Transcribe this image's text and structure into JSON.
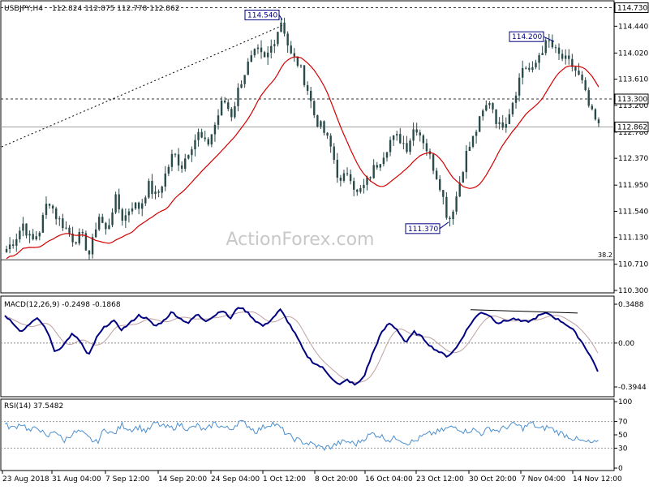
{
  "chart_data": [
    {
      "type": "candlestick",
      "title": "USDJPY,H4",
      "ohlc_header": "112.824 112.875 112.778 112.862",
      "watermark": "ActionForex.com",
      "ylim": [
        110.3,
        114.8
      ],
      "y_ticks": [
        "114.730",
        "114.440",
        "114.020",
        "113.610",
        "113.200",
        "112.780",
        "112.370",
        "111.950",
        "111.540",
        "111.130",
        "110.710",
        "110.300"
      ],
      "y_tick_values": [
        114.73,
        114.44,
        114.02,
        113.61,
        113.2,
        112.78,
        112.37,
        111.95,
        111.54,
        111.13,
        110.71,
        110.3
      ],
      "current_price_label": "112.862",
      "current_price": 112.862,
      "level_labels": [
        "114.730",
        "113.300"
      ],
      "levels": [
        114.73,
        113.3,
        110.78
      ],
      "fib_label": "38.2",
      "annotations": [
        {
          "label": "114.540",
          "value": 114.54
        },
        {
          "label": "114.200",
          "value": 114.2
        },
        {
          "label": "111.370",
          "value": 111.37
        }
      ],
      "close_path": [
        110.95,
        111.1,
        111.35,
        111.05,
        111.25,
        111.75,
        111.45,
        111.3,
        111.1,
        111.15,
        110.85,
        111.5,
        111.2,
        111.75,
        111.4,
        111.65,
        111.6,
        111.95,
        111.75,
        112.1,
        112.45,
        112.25,
        112.55,
        112.75,
        112.55,
        112.9,
        113.3,
        113.05,
        113.55,
        113.85,
        114.05,
        113.9,
        114.2,
        114.55,
        114.0,
        113.85,
        113.5,
        113.0,
        112.8,
        112.5,
        111.95,
        112.2,
        111.8,
        111.95,
        112.2,
        112.4,
        112.65,
        112.7,
        112.55,
        112.9,
        112.65,
        112.3,
        111.95,
        111.37,
        111.8,
        112.4,
        112.7,
        113.05,
        113.3,
        112.85,
        113.0,
        113.4,
        113.85,
        113.7,
        114.05,
        114.2,
        114.0,
        113.9,
        113.8,
        113.55,
        113.1,
        112.86
      ]
    },
    {
      "type": "line",
      "title": "MACD(12,26,9) -0.2498 -0.1868",
      "ylim": [
        -0.46,
        0.4
      ],
      "y_ticks": [
        "0.3488",
        "0.00",
        "-0.3944"
      ],
      "y_tick_values": [
        0.3488,
        0.0,
        -0.3944
      ],
      "macd_path": [
        0.25,
        0.18,
        0.1,
        0.18,
        0.22,
        0.12,
        -0.08,
        -0.02,
        0.08,
        0.02,
        -0.12,
        0.05,
        0.15,
        0.2,
        0.12,
        0.18,
        0.25,
        0.22,
        0.15,
        0.2,
        0.28,
        0.22,
        0.18,
        0.26,
        0.2,
        0.24,
        0.3,
        0.22,
        0.33,
        0.28,
        0.2,
        0.15,
        0.22,
        0.3,
        0.18,
        0.05,
        -0.1,
        -0.18,
        -0.22,
        -0.3,
        -0.38,
        -0.33,
        -0.38,
        -0.3,
        -0.1,
        0.08,
        0.18,
        0.12,
        0.0,
        0.1,
        0.05,
        -0.03,
        -0.08,
        -0.12,
        -0.05,
        0.08,
        0.2,
        0.28,
        0.25,
        0.18,
        0.2,
        0.22,
        0.19,
        0.2,
        0.25,
        0.27,
        0.22,
        0.18,
        0.12,
        0.02,
        -0.1,
        -0.25
      ]
    },
    {
      "type": "line",
      "title": "RSI(14) 37.5482",
      "ylim": [
        0,
        100
      ],
      "y_ticks": [
        "100",
        "70",
        "50",
        "30",
        "0"
      ],
      "y_tick_values": [
        100,
        70,
        50,
        30,
        0
      ],
      "rsi_path": [
        65,
        60,
        68,
        55,
        62,
        45,
        58,
        40,
        52,
        55,
        45,
        38,
        60,
        50,
        65,
        58,
        62,
        55,
        68,
        62,
        60,
        66,
        58,
        64,
        55,
        68,
        62,
        58,
        70,
        65,
        55,
        62,
        68,
        60,
        48,
        42,
        38,
        35,
        30,
        32,
        38,
        40,
        36,
        45,
        52,
        48,
        42,
        46,
        38,
        40,
        48,
        52,
        55,
        60,
        62,
        55,
        58,
        52,
        60,
        56,
        62,
        66,
        60,
        68,
        58,
        62,
        55,
        50,
        45,
        40,
        38,
        37.5
      ]
    }
  ],
  "x_axis": {
    "labels": [
      "23 Aug 2018",
      "31 Aug 04:00",
      "7 Sep 12:00",
      "14 Sep 20:00",
      "24 Sep 04:00",
      "1 Oct 12:00",
      "8 Oct 20:00",
      "16 Oct 04:00",
      "23 Oct 12:00",
      "30 Oct 20:00",
      "7 Nov 04:00",
      "14 Nov 12:00"
    ]
  },
  "colors": {
    "candle": "#2b4a4a",
    "ma": "#d40000",
    "macd": "#000080",
    "macd_signal": "#c0a0a0",
    "rsi": "#4a8fd0",
    "levels": "#333333",
    "label_border": "#000080"
  }
}
